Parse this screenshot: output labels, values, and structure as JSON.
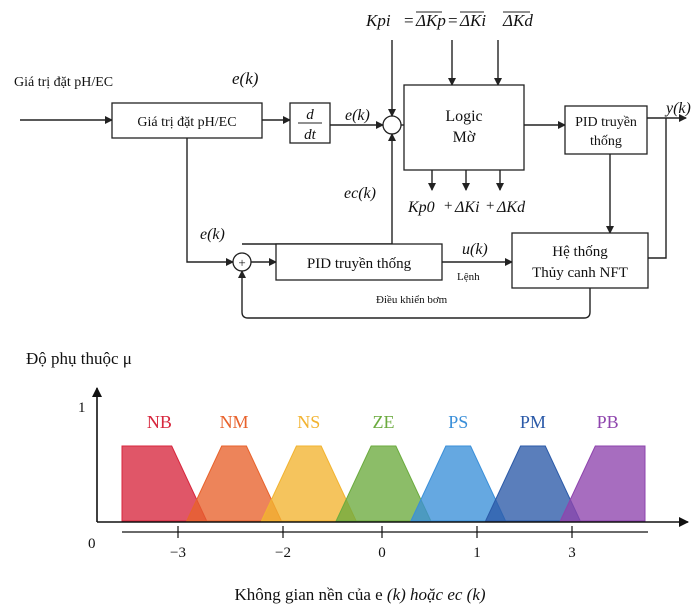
{
  "block_diagram": {
    "input_label": "Giá trị đặt pH/EC",
    "setpoint_block": "Giá trị đặt pH/EC",
    "ek_label": "e(k)",
    "derivative_num": "d",
    "derivative_den": "dt",
    "ek_mid_label": "e(k)",
    "eck_label": "ec(k)",
    "ek_lower_label": "e(k)",
    "top_formula": {
      "kpi": "Kpi",
      "dkp": "ΔKp",
      "dki": "ΔKi",
      "dkd": "ΔKd"
    },
    "logic_line1": "Logic",
    "logic_line2": "Mờ",
    "fuzzy_outputs": {
      "kp0": "Kp0",
      "plus1": "+",
      "dki": "ΔKi",
      "plus2": "+",
      "dkd": "ΔKd"
    },
    "pid_top_line1": "PID truyền",
    "pid_top_line2": "thống",
    "yk_label": "y(k)",
    "pid_bottom": "PID truyền thống",
    "uk_label": "u(k)",
    "lenh_label": "Lệnh",
    "pump_label": "Điều khiển bơm",
    "plant_line1": "Hệ thống",
    "plant_line2": "Thủy canh NFT",
    "sum_symbol": "+"
  },
  "membership": {
    "ylabel": "Độ phụ thuộc μ",
    "y_one": "1",
    "origin": "0",
    "xlabel_plain": "Không gian nền của e ",
    "xlabel_italic": "(k) hoặc ec (k)",
    "ticks": [
      "−3",
      "−2",
      "0",
      "1",
      "3"
    ],
    "sets": [
      {
        "name": "NB",
        "color": "#d7263d"
      },
      {
        "name": "NM",
        "color": "#e8622c"
      },
      {
        "name": "NS",
        "color": "#f2b330"
      },
      {
        "name": "ZE",
        "color": "#6bab3e"
      },
      {
        "name": "PS",
        "color": "#3a8fd9"
      },
      {
        "name": "PM",
        "color": "#2b5aa8"
      },
      {
        "name": "PB",
        "color": "#8e44ad"
      }
    ]
  }
}
